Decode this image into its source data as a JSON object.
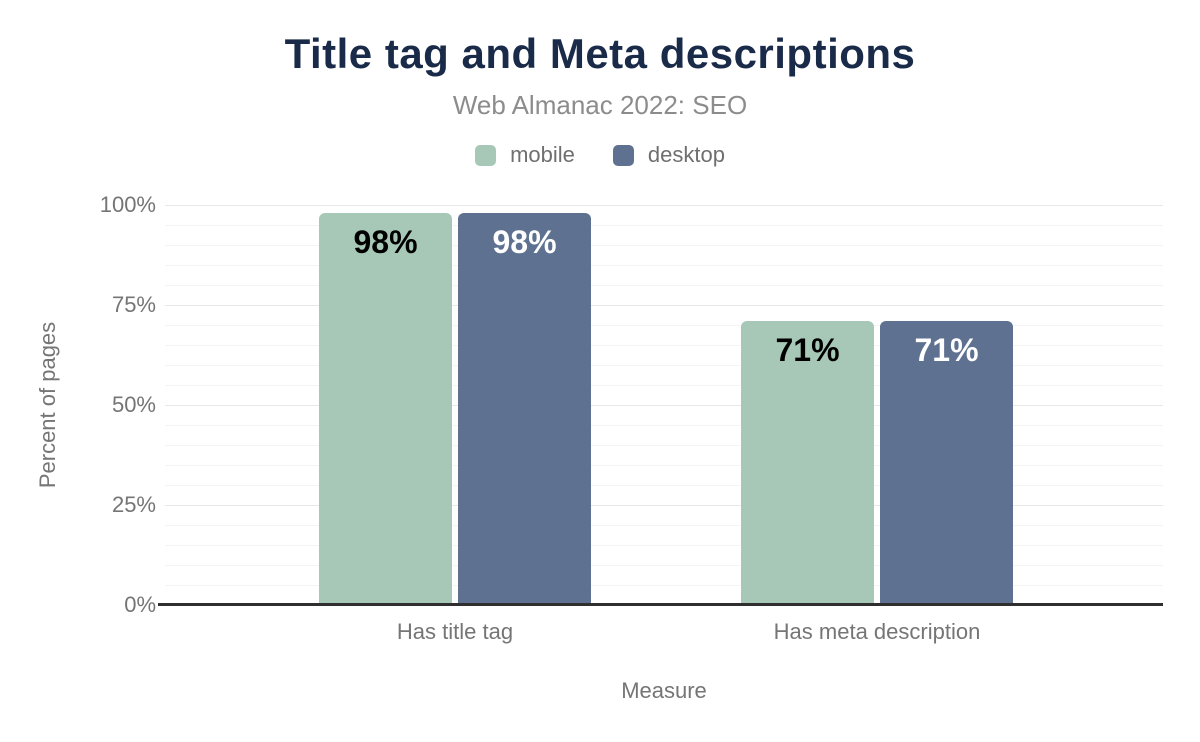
{
  "chart_data": {
    "type": "bar",
    "title": "Title tag and Meta descriptions",
    "subtitle": "Web Almanac 2022: SEO",
    "title_color": "#1a2b49",
    "categories": [
      "Has title tag",
      "Has meta description"
    ],
    "series": [
      {
        "name": "mobile",
        "color": "#a7c8b6",
        "value_label_color": "#000000",
        "values": [
          98,
          71
        ]
      },
      {
        "name": "desktop",
        "color": "#5e7190",
        "value_label_color": "#ffffff",
        "values": [
          98,
          71
        ]
      }
    ],
    "value_label_format": "{v}%",
    "xlabel": "Measure",
    "ylabel": "Percent of pages",
    "ylim": [
      0,
      100
    ],
    "yticks": [
      0,
      25,
      50,
      75,
      100
    ],
    "ytick_labels": [
      "0%",
      "25%",
      "50%",
      "75%",
      "100%"
    ],
    "minor_grid_step": 5,
    "major_grid_step": 25,
    "grid": "on",
    "legend_position": "top"
  }
}
